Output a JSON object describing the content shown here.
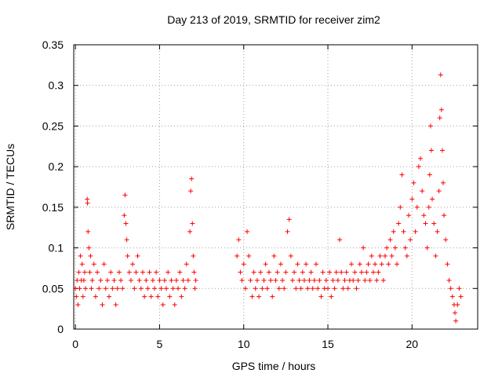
{
  "chart_data": {
    "type": "scatter",
    "title": "Day 213 of 2019, SRMTID for receiver zim2",
    "xlabel": "GPS time / hours",
    "ylabel": "SRMTID / TECUs",
    "xlim": [
      -0.1,
      23.9
    ],
    "ylim": [
      0,
      0.35
    ],
    "xticks": [
      0,
      5,
      10,
      15,
      20
    ],
    "xtick_labels": [
      "0",
      "5",
      "10",
      "15",
      "20"
    ],
    "yticks": [
      0,
      0.05,
      0.1,
      0.15,
      0.2,
      0.25,
      0.3,
      0.35
    ],
    "ytick_labels": [
      "0",
      "0.05",
      "0.1",
      "0.15",
      "0.2",
      "0.25",
      "0.3",
      "0.35"
    ],
    "grid": true,
    "marker": "+",
    "color": "#ff0000",
    "series": [
      {
        "name": "SRMTID",
        "points": [
          [
            0.0,
            0.05
          ],
          [
            0.05,
            0.04
          ],
          [
            0.1,
            0.06
          ],
          [
            0.15,
            0.03
          ],
          [
            0.2,
            0.07
          ],
          [
            0.25,
            0.05
          ],
          [
            0.3,
            0.09
          ],
          [
            0.35,
            0.06
          ],
          [
            0.4,
            0.08
          ],
          [
            0.45,
            0.04
          ],
          [
            0.5,
            0.06
          ],
          [
            0.55,
            0.07
          ],
          [
            0.6,
            0.05
          ],
          [
            0.7,
            0.16
          ],
          [
            0.72,
            0.155
          ],
          [
            0.75,
            0.12
          ],
          [
            0.8,
            0.1
          ],
          [
            0.85,
            0.07
          ],
          [
            0.9,
            0.09
          ],
          [
            0.95,
            0.05
          ],
          [
            1.0,
            0.06
          ],
          [
            1.1,
            0.08
          ],
          [
            1.2,
            0.04
          ],
          [
            1.3,
            0.07
          ],
          [
            1.4,
            0.05
          ],
          [
            1.5,
            0.06
          ],
          [
            1.6,
            0.03
          ],
          [
            1.7,
            0.08
          ],
          [
            1.8,
            0.05
          ],
          [
            1.9,
            0.06
          ],
          [
            2.0,
            0.04
          ],
          [
            2.1,
            0.07
          ],
          [
            2.2,
            0.05
          ],
          [
            2.3,
            0.06
          ],
          [
            2.4,
            0.03
          ],
          [
            2.5,
            0.05
          ],
          [
            2.6,
            0.07
          ],
          [
            2.7,
            0.06
          ],
          [
            2.8,
            0.05
          ],
          [
            2.9,
            0.14
          ],
          [
            2.95,
            0.165
          ],
          [
            3.0,
            0.13
          ],
          [
            3.05,
            0.11
          ],
          [
            3.1,
            0.09
          ],
          [
            3.2,
            0.07
          ],
          [
            3.3,
            0.06
          ],
          [
            3.4,
            0.08
          ],
          [
            3.5,
            0.05
          ],
          [
            3.6,
            0.07
          ],
          [
            3.7,
            0.09
          ],
          [
            3.8,
            0.06
          ],
          [
            3.9,
            0.05
          ],
          [
            4.0,
            0.07
          ],
          [
            4.1,
            0.04
          ],
          [
            4.2,
            0.06
          ],
          [
            4.3,
            0.05
          ],
          [
            4.4,
            0.07
          ],
          [
            4.5,
            0.04
          ],
          [
            4.6,
            0.06
          ],
          [
            4.7,
            0.05
          ],
          [
            4.8,
            0.07
          ],
          [
            4.9,
            0.04
          ],
          [
            5.0,
            0.06
          ],
          [
            5.1,
            0.05
          ],
          [
            5.2,
            0.03
          ],
          [
            5.3,
            0.06
          ],
          [
            5.4,
            0.05
          ],
          [
            5.5,
            0.07
          ],
          [
            5.6,
            0.04
          ],
          [
            5.7,
            0.06
          ],
          [
            5.8,
            0.05
          ],
          [
            5.9,
            0.03
          ],
          [
            6.0,
            0.06
          ],
          [
            6.1,
            0.05
          ],
          [
            6.2,
            0.07
          ],
          [
            6.3,
            0.04
          ],
          [
            6.4,
            0.06
          ],
          [
            6.5,
            0.05
          ],
          [
            6.6,
            0.08
          ],
          [
            6.7,
            0.06
          ],
          [
            6.8,
            0.12
          ],
          [
            6.85,
            0.17
          ],
          [
            6.9,
            0.185
          ],
          [
            6.95,
            0.13
          ],
          [
            7.0,
            0.09
          ],
          [
            7.05,
            0.07
          ],
          [
            7.1,
            0.05
          ],
          [
            7.15,
            0.06
          ],
          [
            9.6,
            0.09
          ],
          [
            9.7,
            0.11
          ],
          [
            9.8,
            0.07
          ],
          [
            9.9,
            0.06
          ],
          [
            10.0,
            0.08
          ],
          [
            10.1,
            0.05
          ],
          [
            10.2,
            0.12
          ],
          [
            10.3,
            0.09
          ],
          [
            10.4,
            0.06
          ],
          [
            10.5,
            0.04
          ],
          [
            10.6,
            0.07
          ],
          [
            10.7,
            0.05
          ],
          [
            10.8,
            0.06
          ],
          [
            10.9,
            0.04
          ],
          [
            11.0,
            0.07
          ],
          [
            11.1,
            0.05
          ],
          [
            11.2,
            0.06
          ],
          [
            11.3,
            0.08
          ],
          [
            11.4,
            0.05
          ],
          [
            11.5,
            0.07
          ],
          [
            11.6,
            0.06
          ],
          [
            11.7,
            0.04
          ],
          [
            11.8,
            0.09
          ],
          [
            11.9,
            0.06
          ],
          [
            12.0,
            0.07
          ],
          [
            12.1,
            0.05
          ],
          [
            12.2,
            0.08
          ],
          [
            12.3,
            0.06
          ],
          [
            12.4,
            0.05
          ],
          [
            12.5,
            0.07
          ],
          [
            12.6,
            0.12
          ],
          [
            12.7,
            0.135
          ],
          [
            12.8,
            0.09
          ],
          [
            12.9,
            0.06
          ],
          [
            13.0,
            0.07
          ],
          [
            13.1,
            0.05
          ],
          [
            13.2,
            0.08
          ],
          [
            13.3,
            0.06
          ],
          [
            13.4,
            0.05
          ],
          [
            13.5,
            0.07
          ],
          [
            13.6,
            0.06
          ],
          [
            13.7,
            0.08
          ],
          [
            13.8,
            0.05
          ],
          [
            13.9,
            0.06
          ],
          [
            14.0,
            0.07
          ],
          [
            14.1,
            0.05
          ],
          [
            14.2,
            0.06
          ],
          [
            14.3,
            0.08
          ],
          [
            14.4,
            0.05
          ],
          [
            14.5,
            0.06
          ],
          [
            14.6,
            0.04
          ],
          [
            14.7,
            0.07
          ],
          [
            14.8,
            0.05
          ],
          [
            14.9,
            0.06
          ],
          [
            15.0,
            0.05
          ],
          [
            15.1,
            0.07
          ],
          [
            15.2,
            0.04
          ],
          [
            15.3,
            0.06
          ],
          [
            15.4,
            0.05
          ],
          [
            15.5,
            0.07
          ],
          [
            15.6,
            0.06
          ],
          [
            15.7,
            0.11
          ],
          [
            15.8,
            0.07
          ],
          [
            15.9,
            0.05
          ],
          [
            16.0,
            0.06
          ],
          [
            16.1,
            0.07
          ],
          [
            16.2,
            0.05
          ],
          [
            16.3,
            0.06
          ],
          [
            16.4,
            0.08
          ],
          [
            16.5,
            0.06
          ],
          [
            16.6,
            0.07
          ],
          [
            16.7,
            0.05
          ],
          [
            16.8,
            0.06
          ],
          [
            16.9,
            0.08
          ],
          [
            17.0,
            0.07
          ],
          [
            17.1,
            0.1
          ],
          [
            17.2,
            0.06
          ],
          [
            17.3,
            0.07
          ],
          [
            17.4,
            0.08
          ],
          [
            17.5,
            0.06
          ],
          [
            17.6,
            0.09
          ],
          [
            17.7,
            0.07
          ],
          [
            17.8,
            0.08
          ],
          [
            17.9,
            0.06
          ],
          [
            18.0,
            0.07
          ],
          [
            18.1,
            0.09
          ],
          [
            18.2,
            0.08
          ],
          [
            18.3,
            0.06
          ],
          [
            18.4,
            0.09
          ],
          [
            18.5,
            0.1
          ],
          [
            18.6,
            0.08
          ],
          [
            18.7,
            0.11
          ],
          [
            18.8,
            0.09
          ],
          [
            18.9,
            0.12
          ],
          [
            19.0,
            0.1
          ],
          [
            19.1,
            0.08
          ],
          [
            19.2,
            0.13
          ],
          [
            19.3,
            0.15
          ],
          [
            19.4,
            0.19
          ],
          [
            19.5,
            0.12
          ],
          [
            19.6,
            0.1
          ],
          [
            19.7,
            0.09
          ],
          [
            19.8,
            0.14
          ],
          [
            19.9,
            0.11
          ],
          [
            20.0,
            0.16
          ],
          [
            20.1,
            0.18
          ],
          [
            20.2,
            0.12
          ],
          [
            20.3,
            0.15
          ],
          [
            20.4,
            0.2
          ],
          [
            20.5,
            0.21
          ],
          [
            20.6,
            0.17
          ],
          [
            20.7,
            0.14
          ],
          [
            20.8,
            0.13
          ],
          [
            20.9,
            0.1
          ],
          [
            21.0,
            0.15
          ],
          [
            21.05,
            0.19
          ],
          [
            21.1,
            0.25
          ],
          [
            21.15,
            0.22
          ],
          [
            21.2,
            0.16
          ],
          [
            21.3,
            0.13
          ],
          [
            21.4,
            0.09
          ],
          [
            21.5,
            0.12
          ],
          [
            21.6,
            0.17
          ],
          [
            21.65,
            0.26
          ],
          [
            21.7,
            0.313
          ],
          [
            21.75,
            0.27
          ],
          [
            21.8,
            0.22
          ],
          [
            21.85,
            0.18
          ],
          [
            21.9,
            0.14
          ],
          [
            22.0,
            0.11
          ],
          [
            22.1,
            0.08
          ],
          [
            22.2,
            0.06
          ],
          [
            22.3,
            0.05
          ],
          [
            22.4,
            0.04
          ],
          [
            22.5,
            0.03
          ],
          [
            22.55,
            0.02
          ],
          [
            22.6,
            0.01
          ],
          [
            22.7,
            0.03
          ],
          [
            22.8,
            0.05
          ],
          [
            22.9,
            0.04
          ]
        ]
      }
    ]
  }
}
